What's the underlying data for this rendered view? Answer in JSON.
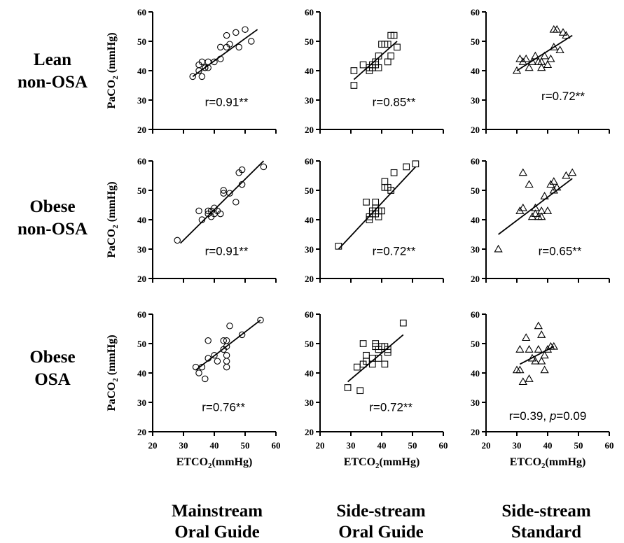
{
  "row_labels": [
    {
      "line1": "Lean",
      "line2": "non-OSA"
    },
    {
      "line1": "Obese",
      "line2": "non-OSA"
    },
    {
      "line1": "Obese",
      "line2": "OSA"
    }
  ],
  "col_labels": [
    {
      "line1": "Mainstream",
      "line2": "Oral Guide"
    },
    {
      "line1": "Side-stream",
      "line2": "Oral Guide"
    },
    {
      "line1": "Side-stream",
      "line2": "Standard"
    }
  ],
  "y_axis_label": {
    "main": "PaCO",
    "sub": "2",
    "unit": " (mmHg)"
  },
  "x_axis_label": {
    "main": "ETCO",
    "sub": "2",
    "unit": "(mmHg)"
  },
  "chart_data": [
    {
      "type": "scatter",
      "row": 0,
      "col": 0,
      "marker": "circle",
      "xlim": [
        20,
        60
      ],
      "ylim": [
        20,
        60
      ],
      "yticks": [
        "60",
        "50",
        "40",
        "30",
        "20"
      ],
      "annotation": {
        "text": "r=0.91**"
      },
      "fit": [
        [
          33,
          38
        ],
        [
          54,
          54
        ]
      ],
      "points": [
        [
          33,
          38
        ],
        [
          35,
          42
        ],
        [
          35,
          40
        ],
        [
          36,
          38
        ],
        [
          36,
          43
        ],
        [
          37,
          41
        ],
        [
          37,
          41
        ],
        [
          38,
          43
        ],
        [
          38,
          41
        ],
        [
          40,
          43
        ],
        [
          42,
          44
        ],
        [
          42,
          48
        ],
        [
          44,
          48
        ],
        [
          44,
          52
        ],
        [
          45,
          49
        ],
        [
          47,
          53
        ],
        [
          48,
          48
        ],
        [
          50,
          54
        ],
        [
          52,
          50
        ]
      ]
    },
    {
      "type": "scatter",
      "row": 0,
      "col": 1,
      "marker": "square",
      "xlim": [
        20,
        60
      ],
      "ylim": [
        20,
        60
      ],
      "yticks": [
        "60",
        "50",
        "40",
        "30",
        "20"
      ],
      "annotation": {
        "text": "r=0.85**"
      },
      "fit": [
        [
          31,
          37
        ],
        [
          45,
          50
        ]
      ],
      "points": [
        [
          31,
          35
        ],
        [
          31,
          40
        ],
        [
          34,
          42
        ],
        [
          36,
          40
        ],
        [
          36,
          41
        ],
        [
          37,
          42
        ],
        [
          37,
          41
        ],
        [
          38,
          43
        ],
        [
          38,
          42
        ],
        [
          39,
          45
        ],
        [
          39,
          41
        ],
        [
          40,
          49
        ],
        [
          41,
          49
        ],
        [
          42,
          49
        ],
        [
          42,
          43
        ],
        [
          43,
          45
        ],
        [
          43,
          52
        ],
        [
          44,
          52
        ],
        [
          45,
          48
        ]
      ]
    },
    {
      "type": "scatter",
      "row": 0,
      "col": 2,
      "marker": "triangle",
      "xlim": [
        20,
        60
      ],
      "ylim": [
        20,
        60
      ],
      "yticks": [
        "60",
        "50",
        "40",
        "30",
        "20"
      ],
      "annotation": {
        "text": "r=0.72**"
      },
      "fit": [
        [
          30,
          40
        ],
        [
          48,
          52
        ]
      ],
      "points": [
        [
          30,
          40
        ],
        [
          31,
          44
        ],
        [
          32,
          43
        ],
        [
          33,
          44
        ],
        [
          34,
          41
        ],
        [
          35,
          43
        ],
        [
          36,
          45
        ],
        [
          37,
          43
        ],
        [
          38,
          41
        ],
        [
          38,
          43
        ],
        [
          39,
          45
        ],
        [
          40,
          42
        ],
        [
          41,
          44
        ],
        [
          42,
          48
        ],
        [
          42,
          54
        ],
        [
          43,
          54
        ],
        [
          44,
          47
        ],
        [
          45,
          53
        ],
        [
          46,
          52
        ]
      ]
    },
    {
      "type": "scatter",
      "row": 1,
      "col": 0,
      "marker": "circle",
      "xlim": [
        20,
        60
      ],
      "ylim": [
        20,
        60
      ],
      "yticks": [
        "60",
        "50",
        "40",
        "30",
        "20"
      ],
      "annotation": {
        "text": "r=0.91**"
      },
      "fit": [
        [
          29,
          32
        ],
        [
          56,
          60
        ]
      ],
      "points": [
        [
          28,
          33
        ],
        [
          35,
          43
        ],
        [
          36,
          40
        ],
        [
          38,
          43
        ],
        [
          38,
          42
        ],
        [
          39,
          43
        ],
        [
          39,
          41
        ],
        [
          40,
          44
        ],
        [
          40,
          42
        ],
        [
          41,
          43
        ],
        [
          42,
          42
        ],
        [
          43,
          49
        ],
        [
          43,
          50
        ],
        [
          45,
          49
        ],
        [
          47,
          46
        ],
        [
          48,
          56
        ],
        [
          49,
          57
        ],
        [
          49,
          52
        ],
        [
          56,
          58
        ]
      ]
    },
    {
      "type": "scatter",
      "row": 1,
      "col": 1,
      "marker": "square",
      "xlim": [
        20,
        60
      ],
      "ylim": [
        20,
        60
      ],
      "yticks": [
        "60",
        "50",
        "40",
        "30",
        "20"
      ],
      "annotation": {
        "text": "r=0.72**"
      },
      "fit": [
        [
          26,
          30
        ],
        [
          51,
          58
        ]
      ],
      "points": [
        [
          26,
          31
        ],
        [
          35,
          46
        ],
        [
          36,
          41
        ],
        [
          36,
          40
        ],
        [
          37,
          42
        ],
        [
          37,
          43
        ],
        [
          38,
          46
        ],
        [
          38,
          44
        ],
        [
          38,
          42
        ],
        [
          39,
          43
        ],
        [
          39,
          41
        ],
        [
          40,
          43
        ],
        [
          41,
          51
        ],
        [
          41,
          53
        ],
        [
          42,
          51
        ],
        [
          43,
          50
        ],
        [
          44,
          56
        ],
        [
          48,
          58
        ],
        [
          51,
          59
        ]
      ]
    },
    {
      "type": "scatter",
      "row": 1,
      "col": 2,
      "marker": "triangle",
      "xlim": [
        20,
        60
      ],
      "ylim": [
        20,
        60
      ],
      "yticks": [
        "60",
        "50",
        "40",
        "30",
        "20"
      ],
      "annotation": {
        "text": "r=0.65**"
      },
      "fit": [
        [
          24,
          35
        ],
        [
          48,
          54
        ]
      ],
      "points": [
        [
          24,
          30
        ],
        [
          31,
          43
        ],
        [
          32,
          44
        ],
        [
          32,
          56
        ],
        [
          34,
          52
        ],
        [
          35,
          41
        ],
        [
          36,
          42
        ],
        [
          36,
          44
        ],
        [
          37,
          41
        ],
        [
          38,
          41
        ],
        [
          38,
          43
        ],
        [
          39,
          48
        ],
        [
          40,
          43
        ],
        [
          41,
          52
        ],
        [
          42,
          50
        ],
        [
          42,
          53
        ],
        [
          43,
          51
        ],
        [
          46,
          55
        ],
        [
          48,
          56
        ]
      ]
    },
    {
      "type": "scatter",
      "row": 2,
      "col": 0,
      "marker": "circle",
      "xlim": [
        20,
        60
      ],
      "ylim": [
        20,
        60
      ],
      "yticks": [
        "60",
        "50",
        "40",
        "30",
        "20"
      ],
      "xticks": [
        "20",
        "30",
        "40",
        "50",
        "60"
      ],
      "annotation": {
        "text": "r=0.76**"
      },
      "fit": [
        [
          34,
          41
        ],
        [
          55,
          58
        ]
      ],
      "points": [
        [
          34,
          42
        ],
        [
          35,
          40
        ],
        [
          36,
          42
        ],
        [
          37,
          38
        ],
        [
          38,
          51
        ],
        [
          38,
          45
        ],
        [
          40,
          46
        ],
        [
          41,
          44
        ],
        [
          43,
          48
        ],
        [
          43,
          51
        ],
        [
          44,
          51
        ],
        [
          44,
          49
        ],
        [
          44,
          46
        ],
        [
          44,
          44
        ],
        [
          44,
          42
        ],
        [
          45,
          56
        ],
        [
          49,
          53
        ],
        [
          55,
          58
        ]
      ]
    },
    {
      "type": "scatter",
      "row": 2,
      "col": 1,
      "marker": "square",
      "xlim": [
        20,
        60
      ],
      "ylim": [
        20,
        60
      ],
      "yticks": [
        "60",
        "50",
        "40",
        "30",
        "20"
      ],
      "xticks": [
        "20",
        "30",
        "40",
        "50",
        "60"
      ],
      "annotation": {
        "text": "r=0.72**"
      },
      "fit": [
        [
          29,
          37
        ],
        [
          47,
          53
        ]
      ],
      "points": [
        [
          29,
          35
        ],
        [
          32,
          42
        ],
        [
          33,
          34
        ],
        [
          34,
          50
        ],
        [
          34,
          43
        ],
        [
          35,
          46
        ],
        [
          35,
          44
        ],
        [
          37,
          45
        ],
        [
          37,
          43
        ],
        [
          38,
          50
        ],
        [
          38,
          49
        ],
        [
          39,
          48
        ],
        [
          39,
          45
        ],
        [
          40,
          49
        ],
        [
          41,
          49
        ],
        [
          41,
          43
        ],
        [
          42,
          47
        ],
        [
          42,
          48
        ],
        [
          47,
          57
        ]
      ]
    },
    {
      "type": "scatter",
      "row": 2,
      "col": 2,
      "marker": "triangle",
      "xlim": [
        20,
        60
      ],
      "ylim": [
        20,
        60
      ],
      "yticks": [
        "60",
        "50",
        "40",
        "30",
        "20"
      ],
      "xticks": [
        "20",
        "30",
        "40",
        "50",
        "60"
      ],
      "annotation": {
        "text": "r=0.39, ",
        "italic": "p",
        "suffix": "=0.09"
      },
      "fit": [
        [
          31,
          43
        ],
        [
          42,
          49
        ]
      ],
      "points": [
        [
          30,
          41
        ],
        [
          31,
          41
        ],
        [
          31,
          48
        ],
        [
          32,
          37
        ],
        [
          33,
          52
        ],
        [
          34,
          38
        ],
        [
          34,
          48
        ],
        [
          35,
          45
        ],
        [
          36,
          44
        ],
        [
          37,
          56
        ],
        [
          37,
          48
        ],
        [
          38,
          53
        ],
        [
          38,
          44
        ],
        [
          39,
          41
        ],
        [
          39,
          46
        ],
        [
          40,
          48
        ],
        [
          41,
          49
        ],
        [
          42,
          49
        ]
      ]
    }
  ]
}
